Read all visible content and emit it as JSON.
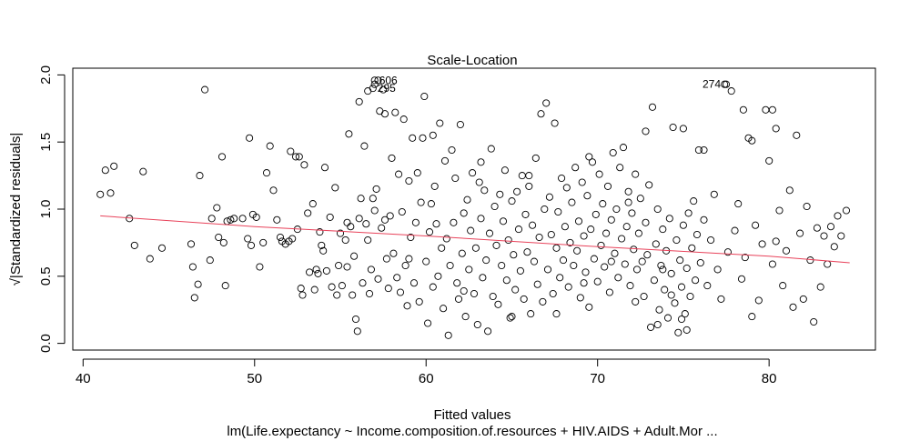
{
  "chart_data": {
    "type": "scatter",
    "title": "Scale-Location",
    "xlabel": "Fitted values",
    "ylabel": "√|Standardized residuals|",
    "subtitle": "lm(Life.expectancy ~ Income.composition.of.resources + HIV.AIDS + Adult.Mor ...",
    "xlim": [
      39.4,
      86.2
    ],
    "ylim": [
      -0.05,
      2.05
    ],
    "xticks": [
      40,
      50,
      60,
      70,
      80
    ],
    "yticks": [
      0.0,
      0.5,
      1.0,
      1.5,
      2.0
    ],
    "xtick_labels": [
      "40",
      "50",
      "60",
      "70",
      "80"
    ],
    "ytick_labels": [
      "0.0",
      "0.5",
      "1.0",
      "1.5",
      "2.0"
    ],
    "grid": false,
    "legend": "none",
    "point_color": "#000000",
    "smooth_color": "#e8425a",
    "smooth_line": [
      {
        "x": 41.0,
        "y": 0.95
      },
      {
        "x": 50.0,
        "y": 0.87
      },
      {
        "x": 60.0,
        "y": 0.8
      },
      {
        "x": 70.0,
        "y": 0.72
      },
      {
        "x": 80.0,
        "y": 0.65
      },
      {
        "x": 84.7,
        "y": 0.6
      }
    ],
    "labeled_points": [
      {
        "label": "606",
        "x": 57.0,
        "y": 1.96
      },
      {
        "label": "295",
        "x": 56.9,
        "y": 1.9
      },
      {
        "label": "274",
        "x": 77.5,
        "y": 1.93
      }
    ],
    "points": [
      [
        41.0,
        1.11
      ],
      [
        41.3,
        1.29
      ],
      [
        41.6,
        1.12
      ],
      [
        41.8,
        1.32
      ],
      [
        42.7,
        0.93
      ],
      [
        43.0,
        0.73
      ],
      [
        43.5,
        1.28
      ],
      [
        43.9,
        0.63
      ],
      [
        44.6,
        0.71
      ],
      [
        46.3,
        0.74
      ],
      [
        46.4,
        0.57
      ],
      [
        46.5,
        0.34
      ],
      [
        46.7,
        0.44
      ],
      [
        46.8,
        1.25
      ],
      [
        47.1,
        1.89
      ],
      [
        47.4,
        0.62
      ],
      [
        47.5,
        0.93
      ],
      [
        47.8,
        1.01
      ],
      [
        47.9,
        0.79
      ],
      [
        48.1,
        1.39
      ],
      [
        48.2,
        0.75
      ],
      [
        48.3,
        0.43
      ],
      [
        48.4,
        0.91
      ],
      [
        48.6,
        0.92
      ],
      [
        48.8,
        0.93
      ],
      [
        49.3,
        0.93
      ],
      [
        49.6,
        0.78
      ],
      [
        49.7,
        1.53
      ],
      [
        49.8,
        0.73
      ],
      [
        49.9,
        0.96
      ],
      [
        50.1,
        0.94
      ],
      [
        50.3,
        0.57
      ],
      [
        50.5,
        0.75
      ],
      [
        50.7,
        1.27
      ],
      [
        50.9,
        1.47
      ],
      [
        51.1,
        1.14
      ],
      [
        51.3,
        0.92
      ],
      [
        51.5,
        0.79
      ],
      [
        51.6,
        0.76
      ],
      [
        51.8,
        0.74
      ],
      [
        52.0,
        0.76
      ],
      [
        52.1,
        1.43
      ],
      [
        52.2,
        0.78
      ],
      [
        52.4,
        1.39
      ],
      [
        52.5,
        0.85
      ],
      [
        52.6,
        1.39
      ],
      [
        52.7,
        0.41
      ],
      [
        52.8,
        0.36
      ],
      [
        52.9,
        1.33
      ],
      [
        53.1,
        0.97
      ],
      [
        53.2,
        0.53
      ],
      [
        53.4,
        1.04
      ],
      [
        53.5,
        0.4
      ],
      [
        53.6,
        0.55
      ],
      [
        53.7,
        0.52
      ],
      [
        53.8,
        0.83
      ],
      [
        53.9,
        0.73
      ],
      [
        54.0,
        0.69
      ],
      [
        54.1,
        1.31
      ],
      [
        54.2,
        0.54
      ],
      [
        54.4,
        0.94
      ],
      [
        54.5,
        0.42
      ],
      [
        54.7,
        1.16
      ],
      [
        54.8,
        0.36
      ],
      [
        54.9,
        0.58
      ],
      [
        55.0,
        0.82
      ],
      [
        55.1,
        0.43
      ],
      [
        55.3,
        0.77
      ],
      [
        55.4,
        0.9
      ],
      [
        55.5,
        1.56
      ],
      [
        55.6,
        0.87
      ],
      [
        55.7,
        0.36
      ],
      [
        55.8,
        0.65
      ],
      [
        55.9,
        0.18
      ],
      [
        56.0,
        0.09
      ],
      [
        56.1,
        0.93
      ],
      [
        56.2,
        1.08
      ],
      [
        56.3,
        0.45
      ],
      [
        56.4,
        1.47
      ],
      [
        56.5,
        0.89
      ],
      [
        56.6,
        0.77
      ],
      [
        56.7,
        0.37
      ],
      [
        56.8,
        0.55
      ],
      [
        56.9,
        1.08
      ],
      [
        57.0,
        0.99
      ],
      [
        57.1,
        1.15
      ],
      [
        57.2,
        0.48
      ],
      [
        57.3,
        1.73
      ],
      [
        57.4,
        0.86
      ],
      [
        57.5,
        1.89
      ],
      [
        57.6,
        0.92
      ],
      [
        57.7,
        0.63
      ],
      [
        57.8,
        0.41
      ],
      [
        57.9,
        0.95
      ],
      [
        58.0,
        1.38
      ],
      [
        58.1,
        0.67
      ],
      [
        58.2,
        1.72
      ],
      [
        58.3,
        0.49
      ],
      [
        58.4,
        1.26
      ],
      [
        58.5,
        0.38
      ],
      [
        58.6,
        0.98
      ],
      [
        58.7,
        1.67
      ],
      [
        58.8,
        0.58
      ],
      [
        58.9,
        0.28
      ],
      [
        59.0,
        1.21
      ],
      [
        59.1,
        0.79
      ],
      [
        59.2,
        1.53
      ],
      [
        59.3,
        0.45
      ],
      [
        59.4,
        0.9
      ],
      [
        59.5,
        1.27
      ],
      [
        59.6,
        0.31
      ],
      [
        59.7,
        1.05
      ],
      [
        59.8,
        1.53
      ],
      [
        59.9,
        1.84
      ],
      [
        60.0,
        0.61
      ],
      [
        60.1,
        0.15
      ],
      [
        60.2,
        0.83
      ],
      [
        60.3,
        1.04
      ],
      [
        60.4,
        0.42
      ],
      [
        60.5,
        1.17
      ],
      [
        60.6,
        0.89
      ],
      [
        60.7,
        0.5
      ],
      [
        60.8,
        1.64
      ],
      [
        60.9,
        0.71
      ],
      [
        61.0,
        0.26
      ],
      [
        61.1,
        1.36
      ],
      [
        61.2,
        0.78
      ],
      [
        61.3,
        0.06
      ],
      [
        61.4,
        0.58
      ],
      [
        61.5,
        1.44
      ],
      [
        61.6,
        0.9
      ],
      [
        61.7,
        1.23
      ],
      [
        61.8,
        0.45
      ],
      [
        61.9,
        0.33
      ],
      [
        62.0,
        1.63
      ],
      [
        62.1,
        0.67
      ],
      [
        62.2,
        0.97
      ],
      [
        62.3,
        0.2
      ],
      [
        62.4,
        1.07
      ],
      [
        62.5,
        0.55
      ],
      [
        62.6,
        0.84
      ],
      [
        62.7,
        1.27
      ],
      [
        62.8,
        0.37
      ],
      [
        62.9,
        0.71
      ],
      [
        63.0,
        0.14
      ],
      [
        63.1,
        1.2
      ],
      [
        63.2,
        0.93
      ],
      [
        63.3,
        0.49
      ],
      [
        63.4,
        1.14
      ],
      [
        63.5,
        0.62
      ],
      [
        63.6,
        0.09
      ],
      [
        63.7,
        0.82
      ],
      [
        63.8,
        1.45
      ],
      [
        63.9,
        0.35
      ],
      [
        64.0,
        1.02
      ],
      [
        64.1,
        0.73
      ],
      [
        64.2,
        0.29
      ],
      [
        64.3,
        1.11
      ],
      [
        64.4,
        0.58
      ],
      [
        64.5,
        0.91
      ],
      [
        64.6,
        1.29
      ],
      [
        64.7,
        0.47
      ],
      [
        64.8,
        0.77
      ],
      [
        64.9,
        0.19
      ],
      [
        65.0,
        1.06
      ],
      [
        65.1,
        0.66
      ],
      [
        65.2,
        0.4
      ],
      [
        65.3,
        1.13
      ],
      [
        65.4,
        0.85
      ],
      [
        65.5,
        0.54
      ],
      [
        65.6,
        1.25
      ],
      [
        65.7,
        0.33
      ],
      [
        65.8,
        0.96
      ],
      [
        65.9,
        0.68
      ],
      [
        66.0,
        1.17
      ],
      [
        66.1,
        0.22
      ],
      [
        66.2,
        0.88
      ],
      [
        66.3,
        0.61
      ],
      [
        66.4,
        1.38
      ],
      [
        66.5,
        0.44
      ],
      [
        66.6,
        0.79
      ],
      [
        66.7,
        1.71
      ],
      [
        66.8,
        0.31
      ],
      [
        66.9,
        1.0
      ],
      [
        67.0,
        1.79
      ],
      [
        67.1,
        0.55
      ],
      [
        67.2,
        1.09
      ],
      [
        67.3,
        0.81
      ],
      [
        67.4,
        0.37
      ],
      [
        67.5,
        1.64
      ],
      [
        67.6,
        0.71
      ],
      [
        67.7,
        0.98
      ],
      [
        67.8,
        0.49
      ],
      [
        67.9,
        1.23
      ],
      [
        68.0,
        0.62
      ],
      [
        68.1,
        0.87
      ],
      [
        68.2,
        1.16
      ],
      [
        68.3,
        0.42
      ],
      [
        68.4,
        0.75
      ],
      [
        68.5,
        1.05
      ],
      [
        68.6,
        0.58
      ],
      [
        68.7,
        1.31
      ],
      [
        68.8,
        0.69
      ],
      [
        68.9,
        0.91
      ],
      [
        69.0,
        0.34
      ],
      [
        69.1,
        1.2
      ],
      [
        69.2,
        0.8
      ],
      [
        69.3,
        0.53
      ],
      [
        69.4,
        1.1
      ],
      [
        69.5,
        0.27
      ],
      [
        69.6,
        0.85
      ],
      [
        69.7,
        1.35
      ],
      [
        69.8,
        0.63
      ],
      [
        69.9,
        0.96
      ],
      [
        70.0,
        0.46
      ],
      [
        70.1,
        1.26
      ],
      [
        70.2,
        0.73
      ],
      [
        70.3,
        1.04
      ],
      [
        70.4,
        0.57
      ],
      [
        70.5,
        0.82
      ],
      [
        70.6,
        1.17
      ],
      [
        70.7,
        0.38
      ],
      [
        70.8,
        0.92
      ],
      [
        70.9,
        1.42
      ],
      [
        71.0,
        0.67
      ],
      [
        71.1,
        1.0
      ],
      [
        71.2,
        0.49
      ],
      [
        71.3,
        1.31
      ],
      [
        71.4,
        0.78
      ],
      [
        71.5,
        1.46
      ],
      [
        71.6,
        0.59
      ],
      [
        71.7,
        0.87
      ],
      [
        71.8,
        1.13
      ],
      [
        71.9,
        0.43
      ],
      [
        72.0,
        0.97
      ],
      [
        72.1,
        0.7
      ],
      [
        72.2,
        1.26
      ],
      [
        72.3,
        0.55
      ],
      [
        72.4,
        0.82
      ],
      [
        72.5,
        1.08
      ],
      [
        72.6,
        0.61
      ],
      [
        72.7,
        0.35
      ],
      [
        72.8,
        0.9
      ],
      [
        72.9,
        0.66
      ],
      [
        73.0,
        1.18
      ],
      [
        73.1,
        0.12
      ],
      [
        73.2,
        1.76
      ],
      [
        73.3,
        0.47
      ],
      [
        73.4,
        0.74
      ],
      [
        73.5,
        1.0
      ],
      [
        73.6,
        0.25
      ],
      [
        73.7,
        0.58
      ],
      [
        73.8,
        0.85
      ],
      [
        73.9,
        0.4
      ],
      [
        74.0,
        0.69
      ],
      [
        74.1,
        0.19
      ],
      [
        74.2,
        0.93
      ],
      [
        74.3,
        0.52
      ],
      [
        74.4,
        1.61
      ],
      [
        74.5,
        0.3
      ],
      [
        74.6,
        0.77
      ],
      [
        74.7,
        0.08
      ],
      [
        74.8,
        0.62
      ],
      [
        74.9,
        0.42
      ],
      [
        75.0,
        0.88
      ],
      [
        75.1,
        0.22
      ],
      [
        75.2,
        0.56
      ],
      [
        75.3,
        0.97
      ],
      [
        75.4,
        0.35
      ],
      [
        75.5,
        0.71
      ],
      [
        75.6,
        1.06
      ],
      [
        75.7,
        0.47
      ],
      [
        75.8,
        0.81
      ],
      [
        75.9,
        1.44
      ],
      [
        76.0,
        0.6
      ],
      [
        76.2,
        0.92
      ],
      [
        76.4,
        0.43
      ],
      [
        76.6,
        0.77
      ],
      [
        76.8,
        1.11
      ],
      [
        77.0,
        0.55
      ],
      [
        77.2,
        0.33
      ],
      [
        77.4,
        1.93
      ],
      [
        77.6,
        0.68
      ],
      [
        77.8,
        1.88
      ],
      [
        78.0,
        0.84
      ],
      [
        78.2,
        1.04
      ],
      [
        78.4,
        0.48
      ],
      [
        78.6,
        0.64
      ],
      [
        78.8,
        1.53
      ],
      [
        79.0,
        0.2
      ],
      [
        79.2,
        0.88
      ],
      [
        79.4,
        0.32
      ],
      [
        79.6,
        0.74
      ],
      [
        79.8,
        1.74
      ],
      [
        80.0,
        1.36
      ],
      [
        80.2,
        0.59
      ],
      [
        80.4,
        0.76
      ],
      [
        80.6,
        0.99
      ],
      [
        80.8,
        0.43
      ],
      [
        81.0,
        0.69
      ],
      [
        81.2,
        1.14
      ],
      [
        81.4,
        0.27
      ],
      [
        81.6,
        1.55
      ],
      [
        81.8,
        0.82
      ],
      [
        82.0,
        0.33
      ],
      [
        82.2,
        1.02
      ],
      [
        82.4,
        0.62
      ],
      [
        82.6,
        0.16
      ],
      [
        82.8,
        0.86
      ],
      [
        83.0,
        0.42
      ],
      [
        83.2,
        0.8
      ],
      [
        83.4,
        0.59
      ],
      [
        83.6,
        0.87
      ],
      [
        83.8,
        0.72
      ],
      [
        84.0,
        0.95
      ],
      [
        84.2,
        0.8
      ],
      [
        84.5,
        0.99
      ],
      [
        56.6,
        1.88
      ],
      [
        57.0,
        1.93
      ],
      [
        57.2,
        1.96
      ],
      [
        56.1,
        1.8
      ],
      [
        57.6,
        1.71
      ],
      [
        60.4,
        1.55
      ],
      [
        63.2,
        1.35
      ],
      [
        66.0,
        1.25
      ],
      [
        69.5,
        1.39
      ],
      [
        72.8,
        1.58
      ],
      [
        75.0,
        1.6
      ],
      [
        78.5,
        1.74
      ],
      [
        80.2,
        1.74
      ],
      [
        80.4,
        1.6
      ],
      [
        79.0,
        1.51
      ],
      [
        76.2,
        1.44
      ],
      [
        71.8,
        1.05
      ],
      [
        70.8,
        0.61
      ],
      [
        73.8,
        0.55
      ],
      [
        74.3,
        0.36
      ],
      [
        74.9,
        0.18
      ],
      [
        75.2,
        0.1
      ],
      [
        73.5,
        0.14
      ],
      [
        72.2,
        0.31
      ],
      [
        69.2,
        0.45
      ],
      [
        67.6,
        0.22
      ],
      [
        65.0,
        0.2
      ],
      [
        62.2,
        0.39
      ],
      [
        59.0,
        0.63
      ],
      [
        55.4,
        0.57
      ]
    ]
  }
}
